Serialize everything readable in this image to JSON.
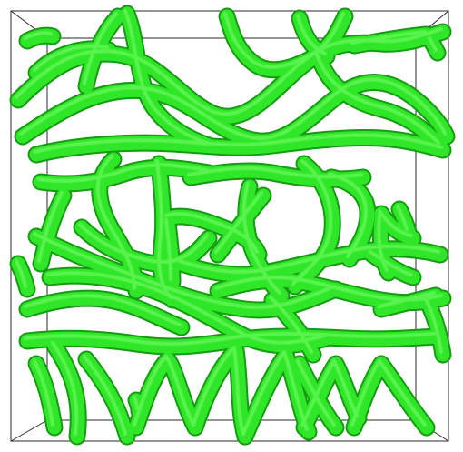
{
  "render": {
    "background_color": "#ffffff",
    "box_edge_color": "#2a2a2a",
    "tube_color": "#2fe628",
    "tube_highlight": "#7dff6e",
    "tube_shadow": "#169c12"
  }
}
